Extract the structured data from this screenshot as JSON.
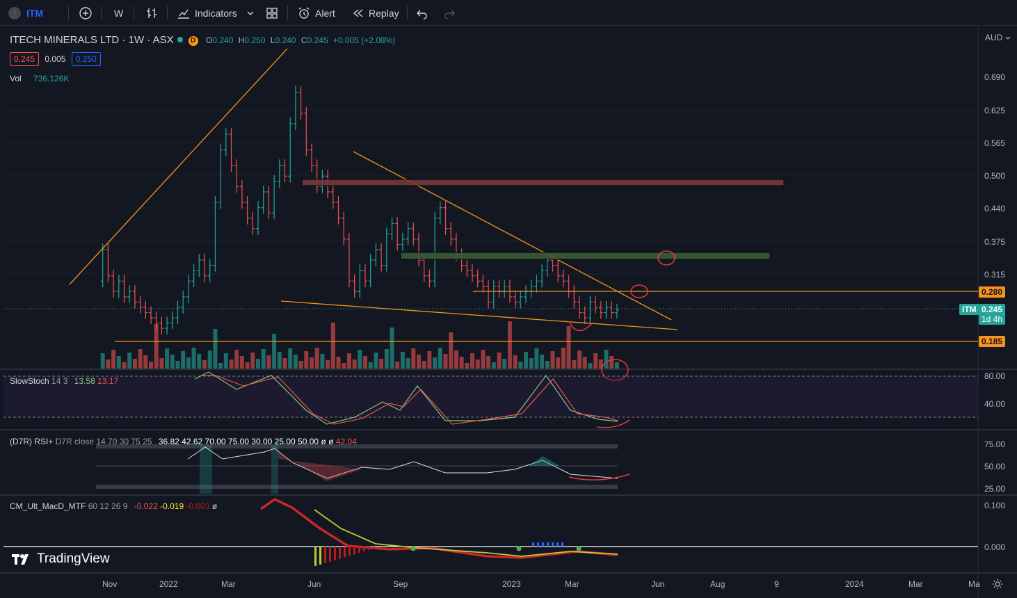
{
  "toolbar": {
    "symbol": "ITM",
    "interval": "W",
    "indicators_label": "Indicators",
    "alert_label": "Alert",
    "replay_label": "Replay"
  },
  "legend": {
    "title": "ITECH MINERALS LTD · 1W · ASX",
    "status_letter": "D",
    "o_label": "O",
    "o_value": "0.240",
    "h_label": "H",
    "h_value": "0.250",
    "l_label": "L",
    "l_value": "0.240",
    "c_label": "C",
    "c_value": "0.245",
    "change": "+0.005 (+2.08%)",
    "bid": "0.245",
    "spread": "0.005",
    "ask": "0.250",
    "vol_label": "Vol",
    "vol_value": "736.126K"
  },
  "indicators": {
    "stoch_name": "SlowStoch",
    "stoch_params": "14 3",
    "stoch_k": "13.58",
    "stoch_d": "13.17",
    "rsi_name": "(D7R) RSI+",
    "rsi_params": "D7R close 14 70 30 75 25",
    "rsi_values": [
      "36.82",
      "42.62",
      "70.00",
      "75.00",
      "30.00",
      "25.00",
      "50.00",
      "ø",
      "ø"
    ],
    "rsi_last": "42.04",
    "macd_name": "CM_Ult_MacD_MTF",
    "macd_params": "60 12 26 9",
    "macd_v1": "-0.022",
    "macd_v2": "-0.019",
    "macd_v3": "-0.003",
    "macd_v4": "ø"
  },
  "price_axis": {
    "currency": "AUD",
    "ticks": [
      "0.690",
      "0.625",
      "0.565",
      "0.500",
      "0.440",
      "0.375",
      "0.315",
      "0.185"
    ],
    "level_280": "0.280",
    "level_185": "0.185",
    "symbol_tag": "ITM",
    "last_price": "0.245",
    "countdown": "1d 4h"
  },
  "stoch_axis": [
    "80.00",
    "40.00"
  ],
  "rsi_axis": [
    "75.00",
    "50.00",
    "25.00"
  ],
  "macd_axis": [
    "0.100",
    "0.000"
  ],
  "time_axis": [
    "Nov",
    "2022",
    "Mar",
    "Jun",
    "Sep",
    "2023",
    "Mar",
    "Jun",
    "Aug",
    "9",
    "2024",
    "Mar",
    "Ma"
  ],
  "watermark": "TradingView",
  "colors": {
    "up": "#26a69a",
    "down": "#ef5350",
    "trendline": "#f7931a",
    "accent": "#2962ff",
    "background": "#131722"
  }
}
